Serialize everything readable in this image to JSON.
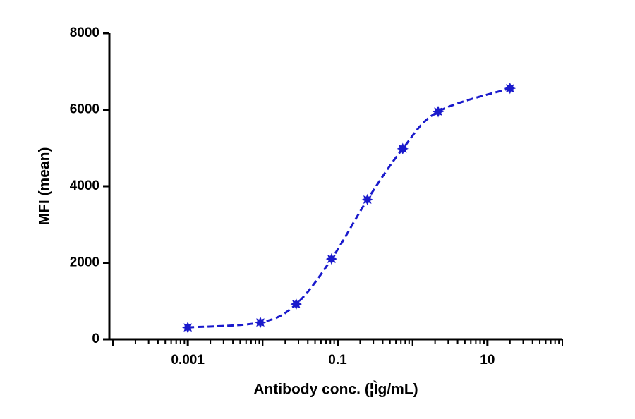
{
  "chart_data": {
    "type": "scatter",
    "x_label": "Antibody conc. (¦Ìg/mL)",
    "y_label": "MFI (mean)",
    "x_scale": "log",
    "xlim": [
      0.0001,
      100
    ],
    "xticks": [
      0.001,
      0.1,
      10
    ],
    "ylim": [
      0,
      8000
    ],
    "yticks": [
      0,
      2000,
      4000,
      6000,
      8000
    ],
    "curve": "dashed",
    "series": [
      {
        "color": "#1a1acc",
        "x": [
          0.001,
          0.0093,
          0.028,
          0.083,
          0.25,
          0.74,
          2.2,
          20
        ],
        "values": [
          310,
          440,
          920,
          2100,
          3650,
          4980,
          5950,
          6560
        ]
      }
    ]
  }
}
